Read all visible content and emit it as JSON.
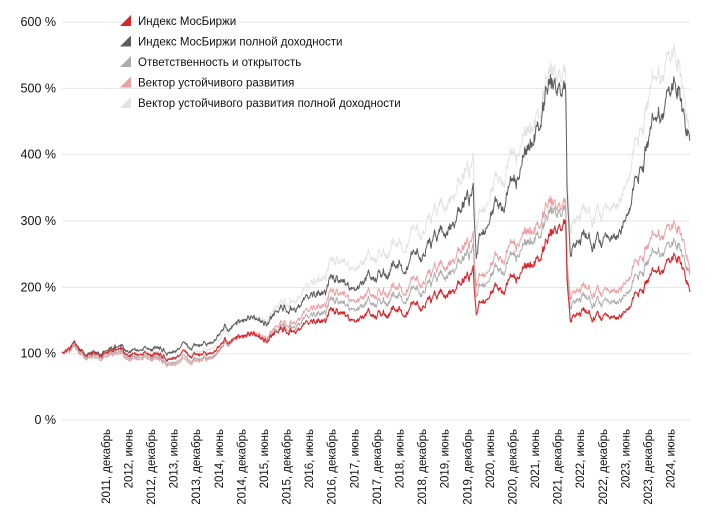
{
  "chart_data": {
    "type": "line",
    "title": "",
    "xlabel": "",
    "ylabel": "",
    "ylim": [
      0,
      600
    ],
    "y_ticks": [
      {
        "value": 0,
        "label": "0 %"
      },
      {
        "value": 100,
        "label": "100 %"
      },
      {
        "value": 200,
        "label": "200 %"
      },
      {
        "value": 300,
        "label": "300 %"
      },
      {
        "value": 400,
        "label": "400 %"
      },
      {
        "value": 500,
        "label": "500 %"
      },
      {
        "value": 600,
        "label": "600 %"
      }
    ],
    "x_range": [
      2010.95,
      2024.85
    ],
    "x_ticks": [
      {
        "value": 2011.92,
        "label": "2011, декабрь"
      },
      {
        "value": 2012.42,
        "label": "2012, июнь"
      },
      {
        "value": 2012.92,
        "label": "2012, декабрь"
      },
      {
        "value": 2013.42,
        "label": "2013, июнь"
      },
      {
        "value": 2013.92,
        "label": "2013, декабрь"
      },
      {
        "value": 2014.42,
        "label": "2014, июнь"
      },
      {
        "value": 2014.92,
        "label": "2014, декабрь"
      },
      {
        "value": 2015.42,
        "label": "2015, июнь"
      },
      {
        "value": 2015.92,
        "label": "2015, декабрь"
      },
      {
        "value": 2016.42,
        "label": "2016, июнь"
      },
      {
        "value": 2016.92,
        "label": "2016, декабрь"
      },
      {
        "value": 2017.42,
        "label": "2017, июнь"
      },
      {
        "value": 2017.92,
        "label": "2017, декабрь"
      },
      {
        "value": 2018.42,
        "label": "2018, июнь"
      },
      {
        "value": 2018.92,
        "label": "2018, декабрь"
      },
      {
        "value": 2019.42,
        "label": "2019, июнь"
      },
      {
        "value": 2019.92,
        "label": "2019, декабрь"
      },
      {
        "value": 2020.42,
        "label": "2020, июнь"
      },
      {
        "value": 2020.92,
        "label": "2020, декабрь"
      },
      {
        "value": 2021.42,
        "label": "2021, июнь"
      },
      {
        "value": 2021.92,
        "label": "2021, декабрь"
      },
      {
        "value": 2022.42,
        "label": "2022, июнь"
      },
      {
        "value": 2022.92,
        "label": "2022, декабрь"
      },
      {
        "value": 2023.42,
        "label": "2023, июнь"
      },
      {
        "value": 2023.92,
        "label": "2023, декабрь"
      },
      {
        "value": 2024.42,
        "label": "2024, июнь"
      }
    ],
    "grid": true,
    "legend_position": "top-left",
    "series": [
      {
        "name": "Индекс МосБиржи",
        "color": "#d9262c",
        "x": [
          2010.95,
          2011.2,
          2011.45,
          2011.7,
          2011.95,
          2012.2,
          2012.45,
          2012.7,
          2012.95,
          2013.2,
          2013.45,
          2013.7,
          2013.95,
          2014.2,
          2014.45,
          2014.7,
          2014.95,
          2015.2,
          2015.45,
          2015.7,
          2015.95,
          2016.2,
          2016.45,
          2016.7,
          2016.95,
          2017.2,
          2017.45,
          2017.7,
          2017.95,
          2018.2,
          2018.45,
          2018.7,
          2018.95,
          2019.2,
          2019.45,
          2019.7,
          2019.9,
          2020.05,
          2020.12,
          2020.2,
          2020.45,
          2020.7,
          2020.95,
          2021.2,
          2021.45,
          2021.7,
          2021.8,
          2021.95,
          2022.1,
          2022.13,
          2022.2,
          2022.45,
          2022.7,
          2022.95,
          2023.2,
          2023.45,
          2023.7,
          2023.95,
          2024.2,
          2024.45,
          2024.6,
          2024.75,
          2024.85
        ],
        "values": [
          100,
          112,
          95,
          98,
          103,
          108,
          98,
          100,
          101,
          96,
          94,
          99,
          100,
          98,
          110,
          120,
          118,
          128,
          125,
          130,
          135,
          142,
          148,
          153,
          162,
          150,
          140,
          152,
          157,
          163,
          170,
          168,
          175,
          182,
          188,
          200,
          212,
          225,
          150,
          175,
          195,
          200,
          212,
          230,
          248,
          265,
          285,
          290,
          280,
          200,
          150,
          172,
          160,
          158,
          165,
          178,
          198,
          210,
          225,
          240,
          245,
          210,
          190
        ]
      },
      {
        "name": "Индекс МосБиржи полной доходности",
        "color": "#5c5c5c",
        "x": [
          2010.95,
          2011.2,
          2011.45,
          2011.7,
          2011.95,
          2012.2,
          2012.45,
          2012.7,
          2012.95,
          2013.2,
          2013.45,
          2013.7,
          2013.95,
          2014.2,
          2014.45,
          2014.7,
          2014.95,
          2015.2,
          2015.45,
          2015.7,
          2015.95,
          2016.2,
          2016.45,
          2016.7,
          2016.95,
          2017.2,
          2017.45,
          2017.7,
          2017.95,
          2018.2,
          2018.45,
          2018.7,
          2018.95,
          2019.2,
          2019.45,
          2019.7,
          2019.9,
          2020.05,
          2020.12,
          2020.2,
          2020.45,
          2020.7,
          2020.95,
          2021.2,
          2021.45,
          2021.7,
          2021.8,
          2021.95,
          2022.1,
          2022.13,
          2022.2,
          2022.45,
          2022.7,
          2022.95,
          2023.2,
          2023.45,
          2023.7,
          2023.95,
          2024.2,
          2024.45,
          2024.6,
          2024.75,
          2024.85
        ],
        "values": [
          100,
          113,
          96,
          100,
          106,
          112,
          104,
          107,
          110,
          106,
          104,
          111,
          114,
          113,
          128,
          140,
          140,
          152,
          152,
          160,
          168,
          178,
          188,
          196,
          210,
          195,
          185,
          204,
          215,
          226,
          240,
          240,
          255,
          268,
          282,
          305,
          330,
          345,
          230,
          275,
          315,
          330,
          355,
          400,
          450,
          490,
          510,
          500,
          470,
          330,
          250,
          290,
          275,
          275,
          295,
          330,
          380,
          420,
          460,
          495,
          500,
          430,
          415
        ]
      },
      {
        "name": "Ответственность и открытость",
        "color": "#adadad",
        "x": [
          2010.95,
          2011.2,
          2011.45,
          2011.7,
          2011.95,
          2012.2,
          2012.45,
          2012.7,
          2012.95,
          2013.2,
          2013.45,
          2013.7,
          2013.95,
          2014.2,
          2014.45,
          2014.7,
          2014.95,
          2015.2,
          2015.45,
          2015.7,
          2015.95,
          2016.2,
          2016.45,
          2016.7,
          2016.95,
          2017.2,
          2017.45,
          2017.7,
          2017.95,
          2018.2,
          2018.45,
          2018.7,
          2018.95,
          2019.2,
          2019.45,
          2019.7,
          2019.9,
          2020.05,
          2020.12,
          2020.2,
          2020.45,
          2020.7,
          2020.95,
          2021.2,
          2021.45,
          2021.7,
          2021.8,
          2021.95,
          2022.1,
          2022.13,
          2022.2,
          2022.45,
          2022.7,
          2022.95,
          2023.2,
          2023.45,
          2023.7,
          2023.95,
          2024.2,
          2024.45,
          2024.6,
          2024.75,
          2024.85
        ],
        "values": [
          100,
          108,
          92,
          95,
          100,
          104,
          94,
          96,
          97,
          91,
          87,
          92,
          93,
          92,
          105,
          117,
          116,
          127,
          126,
          133,
          140,
          150,
          158,
          165,
          178,
          165,
          156,
          168,
          175,
          182,
          192,
          190,
          198,
          208,
          216,
          232,
          246,
          258,
          175,
          200,
          222,
          230,
          245,
          265,
          285,
          300,
          318,
          312,
          300,
          215,
          170,
          195,
          182,
          180,
          190,
          205,
          225,
          238,
          252,
          262,
          265,
          228,
          215
        ]
      },
      {
        "name": "Вектор устойчивого развития",
        "color": "#eda0a3",
        "x": [
          2010.95,
          2011.2,
          2011.45,
          2011.7,
          2011.95,
          2012.2,
          2012.45,
          2012.7,
          2012.95,
          2013.2,
          2013.45,
          2013.7,
          2013.95,
          2014.2,
          2014.45,
          2014.7,
          2014.95,
          2015.2,
          2015.45,
          2015.7,
          2015.95,
          2016.2,
          2016.45,
          2016.7,
          2016.95,
          2017.2,
          2017.45,
          2017.7,
          2017.95,
          2018.2,
          2018.45,
          2018.7,
          2018.95,
          2019.2,
          2019.45,
          2019.7,
          2019.9,
          2020.05,
          2020.12,
          2020.2,
          2020.45,
          2020.7,
          2020.95,
          2021.2,
          2021.45,
          2021.7,
          2021.8,
          2021.95,
          2022.1,
          2022.13,
          2022.2,
          2022.45,
          2022.7,
          2022.95,
          2023.2,
          2023.45,
          2023.7,
          2023.95,
          2024.2,
          2024.45,
          2024.6,
          2024.75,
          2024.85
        ],
        "values": [
          100,
          106,
          90,
          92,
          97,
          101,
          91,
          93,
          94,
          88,
          84,
          88,
          90,
          90,
          103,
          118,
          118,
          130,
          130,
          138,
          146,
          158,
          168,
          176,
          190,
          178,
          168,
          180,
          188,
          196,
          205,
          204,
          212,
          222,
          230,
          248,
          262,
          275,
          190,
          215,
          238,
          248,
          262,
          282,
          300,
          318,
          330,
          322,
          310,
          225,
          185,
          210,
          198,
          196,
          208,
          225,
          248,
          262,
          278,
          288,
          290,
          250,
          220
        ]
      },
      {
        "name": "Вектор устойчивого развития полной доходности",
        "color": "#e3e3e3",
        "x": [
          2010.95,
          2011.2,
          2011.45,
          2011.7,
          2011.95,
          2012.2,
          2012.45,
          2012.7,
          2012.95,
          2013.2,
          2013.45,
          2013.7,
          2013.95,
          2014.2,
          2014.45,
          2014.7,
          2014.95,
          2015.2,
          2015.45,
          2015.7,
          2015.95,
          2016.2,
          2016.45,
          2016.7,
          2016.95,
          2017.2,
          2017.45,
          2017.7,
          2017.95,
          2018.2,
          2018.45,
          2018.7,
          2018.95,
          2019.2,
          2019.45,
          2019.7,
          2019.9,
          2020.05,
          2020.12,
          2020.2,
          2020.45,
          2020.7,
          2020.95,
          2021.2,
          2021.45,
          2021.7,
          2021.8,
          2021.95,
          2022.1,
          2022.13,
          2022.2,
          2022.45,
          2022.7,
          2022.95,
          2023.2,
          2023.45,
          2023.7,
          2023.95,
          2024.2,
          2024.45,
          2024.6,
          2024.75,
          2024.85
        ],
        "values": [
          100,
          110,
          94,
          97,
          103,
          108,
          99,
          102,
          104,
          99,
          96,
          101,
          104,
          104,
          120,
          137,
          138,
          154,
          156,
          167,
          178,
          192,
          206,
          218,
          236,
          224,
          214,
          232,
          245,
          258,
          274,
          276,
          290,
          306,
          322,
          348,
          372,
          390,
          270,
          310,
          350,
          370,
          395,
          430,
          470,
          505,
          530,
          520,
          495,
          350,
          285,
          330,
          315,
          318,
          345,
          385,
          440,
          480,
          520,
          545,
          540,
          460,
          420
        ]
      }
    ]
  }
}
